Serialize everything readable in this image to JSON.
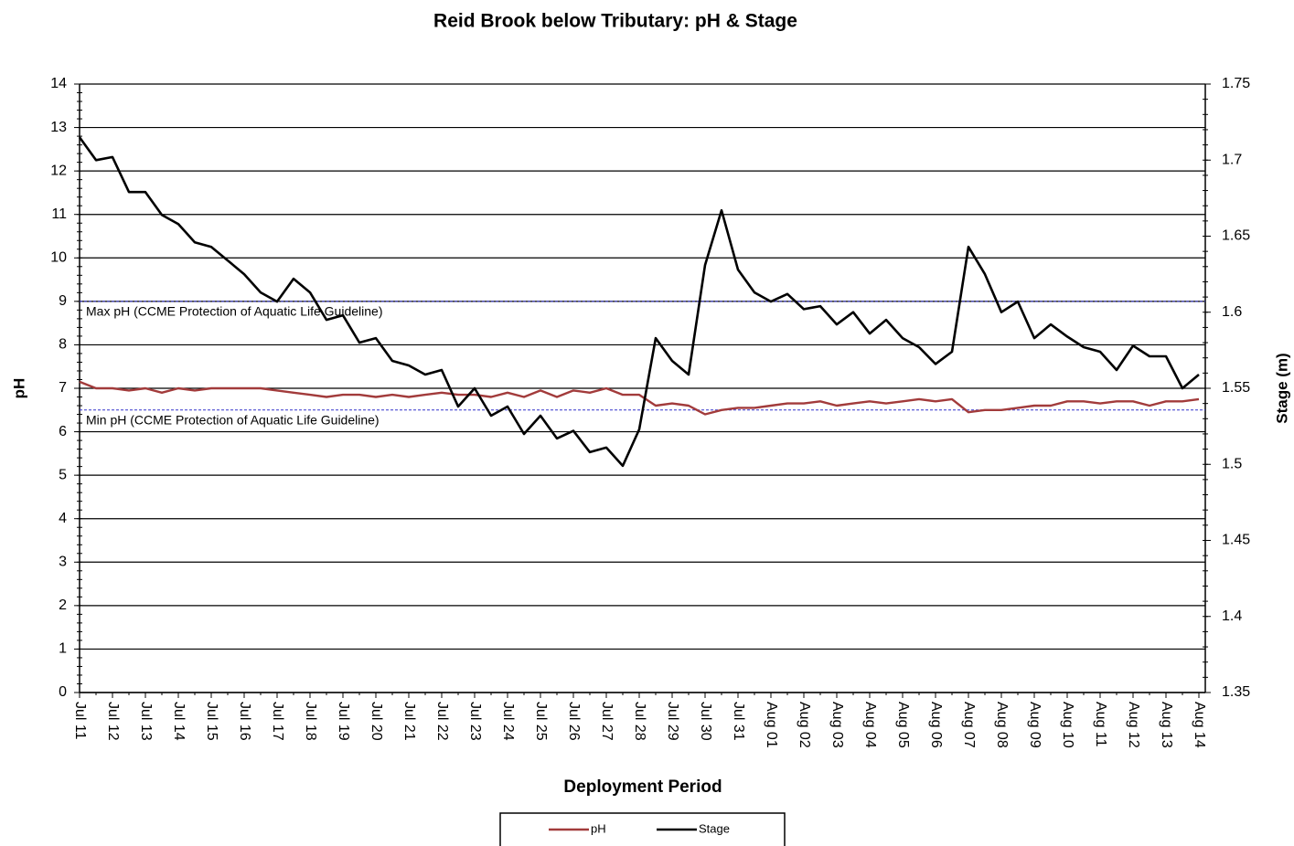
{
  "chart_data": {
    "type": "line",
    "title": "Reid Brook below Tributary: pH & Stage",
    "x_label": "Deployment Period",
    "y_label": "pH",
    "y2_label": "Stage (m)",
    "categories": [
      "Jul 11",
      null,
      "Jul 12",
      null,
      "Jul 13",
      null,
      "Jul 14",
      null,
      "Jul 15",
      null,
      "Jul 16",
      null,
      "Jul 17",
      null,
      "Jul 18",
      null,
      "Jul 19",
      null,
      "Jul 20",
      null,
      "Jul 21",
      null,
      "Jul 22",
      null,
      "Jul 23",
      null,
      "Jul 24",
      null,
      "Jul 25",
      null,
      "Jul 26",
      null,
      "Jul 27",
      null,
      "Jul 28",
      null,
      "Jul 29",
      null,
      "Jul 30",
      null,
      "Jul 31",
      null,
      "Aug 01",
      null,
      "Aug 02",
      null,
      "Aug 03",
      null,
      "Aug 04",
      null,
      "Aug 05",
      null,
      "Aug 06",
      null,
      "Aug 07",
      null,
      "Aug 08",
      null,
      "Aug 09",
      null,
      "Aug 10",
      null,
      "Aug 11",
      null,
      "Aug 12",
      null,
      "Aug 13",
      null,
      "Aug 14"
    ],
    "series": [
      {
        "name": "pH",
        "color": "#a23b3b",
        "axis": "y",
        "values": [
          7.15,
          7.0,
          7.0,
          6.95,
          7.0,
          6.9,
          7.0,
          6.95,
          7.0,
          7.0,
          7.0,
          7.0,
          6.95,
          6.9,
          6.85,
          6.8,
          6.85,
          6.85,
          6.8,
          6.85,
          6.8,
          6.85,
          6.9,
          6.85,
          6.85,
          6.8,
          6.9,
          6.8,
          6.95,
          6.8,
          6.95,
          6.9,
          7.0,
          6.85,
          6.85,
          6.6,
          6.65,
          6.6,
          6.4,
          6.5,
          6.55,
          6.55,
          6.6,
          6.65,
          6.65,
          6.7,
          6.6,
          6.65,
          6.7,
          6.65,
          6.7,
          6.75,
          6.7,
          6.75,
          6.45,
          6.5,
          6.5,
          6.55,
          6.6,
          6.6,
          6.7,
          6.7,
          6.65,
          6.7,
          6.7,
          6.6,
          6.7,
          6.7,
          6.75
        ]
      },
      {
        "name": "Stage",
        "color": "#000000",
        "axis": "y2",
        "values": [
          1.715,
          1.7,
          1.702,
          1.679,
          1.679,
          1.664,
          1.658,
          1.646,
          1.643,
          1.634,
          1.625,
          1.613,
          1.607,
          1.622,
          1.613,
          1.595,
          1.598,
          1.58,
          1.583,
          1.568,
          1.565,
          1.559,
          1.562,
          1.538,
          1.55,
          1.532,
          1.538,
          1.52,
          1.532,
          1.517,
          1.522,
          1.508,
          1.511,
          1.499,
          1.523,
          1.583,
          1.568,
          1.559,
          1.631,
          1.667,
          1.628,
          1.613,
          1.607,
          1.612,
          1.602,
          1.604,
          1.592,
          1.6,
          1.586,
          1.595,
          1.583,
          1.577,
          1.566,
          1.574,
          1.643,
          1.625,
          1.6,
          1.607,
          1.583,
          1.592,
          1.584,
          1.577,
          1.574,
          1.562,
          1.578,
          1.571,
          1.571,
          1.55,
          1.559
        ]
      }
    ],
    "reference_lines": [
      {
        "value": 9,
        "label": "Max pH  (CCME  Protection of Aquatic Life Guideline)",
        "color": "#3333cc"
      },
      {
        "value": 6.5,
        "label": "Min pH  (CCME  Protection of Aquatic Life Guideline)",
        "color": "#3333cc"
      }
    ],
    "ylim": [
      0,
      14
    ],
    "yticks": [
      0,
      1,
      2,
      3,
      4,
      5,
      6,
      7,
      8,
      9,
      10,
      11,
      12,
      13,
      14
    ],
    "y2lim": [
      1.35,
      1.75
    ],
    "y2ticks": [
      1.35,
      1.4,
      1.45,
      1.5,
      1.55,
      1.6,
      1.65,
      1.7,
      1.75
    ],
    "grid": true,
    "legend": "bottom"
  }
}
